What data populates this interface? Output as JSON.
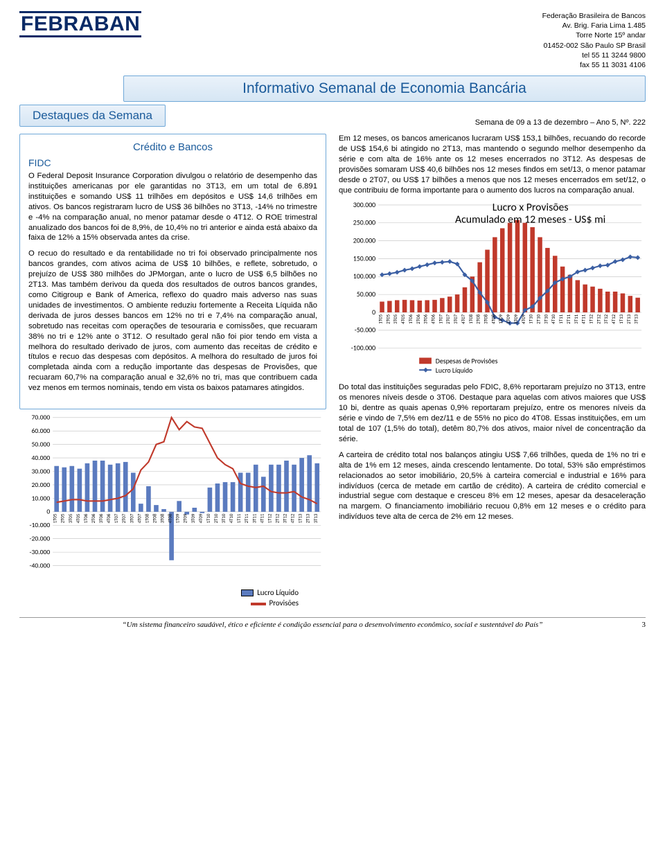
{
  "org": {
    "logo_text": "FEBRABAN",
    "name": "Federação Brasileira de Bancos",
    "addr1": "Av. Brig. Faria Lima 1.485",
    "addr2": "Torre Norte 15º andar",
    "addr3": "01452-002 São Paulo SP Brasil",
    "tel": "tel 55 11 3244 9800",
    "fax": "fax 55 11 3031 4106"
  },
  "titles": {
    "main": "Informativo Semanal de Economia Bancária",
    "destaques": "Destaques da Semana",
    "issue": "Semana de 09 a 13 de dezembro – Ano 5, Nº. 222",
    "section": "Crédito e Bancos",
    "fidc": "FIDC"
  },
  "left": {
    "p1": "O Federal Deposit Insurance Corporation divulgou o relatório de desempenho das instituições americanas por ele garantidas no 3T13, em um total de 6.891 instituições e somando US$ 11 trilhões em depósitos e US$ 14,6 trilhões em ativos. Os bancos registraram lucro de US$ 36 bilhões no 3T13, -14% no trimestre e -4% na comparação anual, no menor patamar desde o 4T12. O ROE trimestral anualizado dos bancos foi de 8,9%, de 10,4% no tri anterior e ainda está abaixo da faixa de 12% a 15% observada antes da crise.",
    "p2": "O recuo do resultado e da rentabilidade no tri foi observado principalmente nos bancos grandes, com ativos acima de US$ 10 bilhões, e reflete, sobretudo, o prejuízo de US$ 380 milhões do JPMorgan, ante o lucro de US$ 6,5 bilhões no 2T13. Mas também derivou da queda dos resultados de outros bancos grandes, como Citigroup e Bank of America, reflexo do quadro mais adverso nas suas unidades de investimentos. O ambiente reduziu fortemente a Receita Líquida não derivada de juros desses bancos em 12% no tri e 7,4% na comparação anual, sobretudo nas receitas com operações de tesouraria e comissões, que recuaram 38% no tri e 12% ante o 3T12. O resultado geral não foi pior tendo em vista a melhora do resultado derivado de juros, com aumento das receitas de crédito e títulos e recuo das despesas com depósitos. A melhora do resultado de juros foi completada ainda com a redução importante das despesas de Provisões, que recuaram 60,7% na comparação anual e 32,6% no tri, mas que contribuem cada vez menos em termos nominais, tendo em vista os baixos patamares atingidos."
  },
  "right": {
    "p1": "Em 12 meses, os bancos americanos lucraram US$ 153,1 bilhões, recuando do recorde de US$ 154,6 bi atingido no 2T13, mas mantendo o segundo melhor desempenho da série e com alta de 16% ante os 12 meses encerrados no 3T12. As despesas de provisões somaram US$ 40,6 bilhões nos 12 meses findos em set/13, o menor patamar desde o 2T07, ou US$ 17 bilhões a menos que nos 12 meses encerrados em set/12, o que contribuiu de forma importante para o aumento dos lucros na comparação anual.",
    "p2": "Do total das instituições seguradas pelo FDIC, 8,6% reportaram prejuízo no 3T13, entre os menores níveis desde o 3T06. Destaque para aquelas com ativos maiores que US$ 10 bi, dentre as quais apenas 0,9% reportaram prejuízo, entre os menores níveis da série e vindo de 7,5% em dez/11 e de 55% no pico do 4T08. Essas instituições, em um total de 107 (1,5% do total), detêm 80,7% dos ativos, maior nível de concentração da série.",
    "p3": "A carteira de crédito total nos balanços atingiu US$ 7,66 trilhões, queda de 1% no tri e alta de 1% em 12 meses, ainda crescendo lentamente. Do total, 53% são empréstimos relacionados ao setor imobiliário, 20,5% à carteira comercial e industrial e 16% para indivíduos (cerca de metade em cartão de crédito). A carteira de crédito comercial e industrial segue com destaque e cresceu 8% em 12 meses, apesar da desaceleração na margem. O financiamento imobiliário recuou 0,8% em 12 meses e o crédito para indivíduos teve alta de cerca de 2% em 12 meses."
  },
  "footer": {
    "quote": "“Um sistema financeiro saudável, ético e eficiente é condição essencial para o desenvolvimento econômico, social e sustentável do País”",
    "page": "3"
  },
  "chart_left": {
    "type": "bar+line",
    "categories": [
      "1T05",
      "2T05",
      "3T05",
      "4T05",
      "1T06",
      "2T06",
      "3T06",
      "4T06",
      "1T07",
      "2T07",
      "3T07",
      "4T07",
      "1T08",
      "2T08",
      "3T08",
      "4T08",
      "1T09",
      "2T09",
      "3T09",
      "4T09",
      "1T10",
      "2T10",
      "3T10",
      "4T10",
      "1T11",
      "2T11",
      "3T11",
      "4T11",
      "1T12",
      "2T12",
      "3T12",
      "4T12",
      "1T13",
      "2T13",
      "3T13"
    ],
    "bars": [
      34000,
      33000,
      34000,
      32000,
      36000,
      38000,
      38000,
      35000,
      36000,
      37000,
      29000,
      6000,
      19000,
      5000,
      2000,
      -36000,
      8000,
      -2000,
      3000,
      -1000,
      18000,
      21000,
      22000,
      22000,
      29000,
      29000,
      35000,
      26000,
      35000,
      35000,
      38000,
      35000,
      40000,
      42000,
      36000
    ],
    "line": [
      7000,
      8000,
      9000,
      9000,
      8000,
      8000,
      8000,
      9000,
      10000,
      12000,
      17000,
      31000,
      37000,
      50000,
      52000,
      70000,
      61000,
      67000,
      63000,
      62000,
      51000,
      40000,
      35000,
      32000,
      21000,
      19000,
      18000,
      19000,
      15000,
      14000,
      14000,
      15000,
      11000,
      9000,
      6000
    ],
    "ylim": [
      -40000,
      70000
    ],
    "ytick_step": 10000,
    "bar_color": "#5b7bbf",
    "line_color": "#c0392b",
    "grid_color": "#bfbfbf",
    "background_color": "#ffffff",
    "legend": {
      "bar": "Lucro Líquido",
      "line": "Provisões"
    },
    "font_family": "Calibri",
    "axis_fontsize": 10,
    "tick_fontsize": 7
  },
  "chart_right": {
    "type": "bar+line",
    "title1": "Lucro x Provisões",
    "title2": "Acumulado em 12 meses - US$ mi",
    "categories": [
      "1T05",
      "2T05",
      "3T05",
      "4T05",
      "1T06",
      "2T06",
      "3T06",
      "4T06",
      "1T07",
      "2T07",
      "3T07",
      "4T07",
      "1T08",
      "2T08",
      "3T08",
      "4T08",
      "1T09",
      "2T09",
      "3T09",
      "4T09",
      "1T10",
      "2T10",
      "3T10",
      "4T10",
      "1T11",
      "2T11",
      "3T11",
      "4T11",
      "1T12",
      "2T12",
      "3T12",
      "4T12",
      "1T13",
      "2T13",
      "3T13"
    ],
    "bars": [
      30000,
      32000,
      34000,
      35000,
      34000,
      33000,
      34000,
      35000,
      40000,
      44000,
      50000,
      70000,
      100000,
      140000,
      175000,
      210000,
      235000,
      250000,
      258000,
      250000,
      238000,
      210000,
      180000,
      158000,
      128000,
      105000,
      90000,
      78000,
      72000,
      66000,
      58000,
      58000,
      53000,
      46000,
      41000
    ],
    "line": [
      105000,
      108000,
      112000,
      118000,
      122000,
      128000,
      133000,
      138000,
      140000,
      142000,
      135000,
      105000,
      88000,
      55000,
      28000,
      -13000,
      -22000,
      -30000,
      -30000,
      6000,
      16000,
      40000,
      60000,
      83000,
      93000,
      100000,
      113000,
      118000,
      124000,
      130000,
      132000,
      142000,
      147000,
      155000,
      153000
    ],
    "ylim": [
      -100000,
      300000
    ],
    "ytick_step": 50000,
    "bar_color": "#c0392b",
    "line_color": "#3b5fa3",
    "marker_color": "#3b5fa3",
    "grid_color": "#bfbfbf",
    "background_color": "#ffffff",
    "legend": {
      "bar": "Despesas de Provisões",
      "line": "Lucro Líquido"
    },
    "title_fontsize": 16,
    "font_family": "Calibri"
  }
}
